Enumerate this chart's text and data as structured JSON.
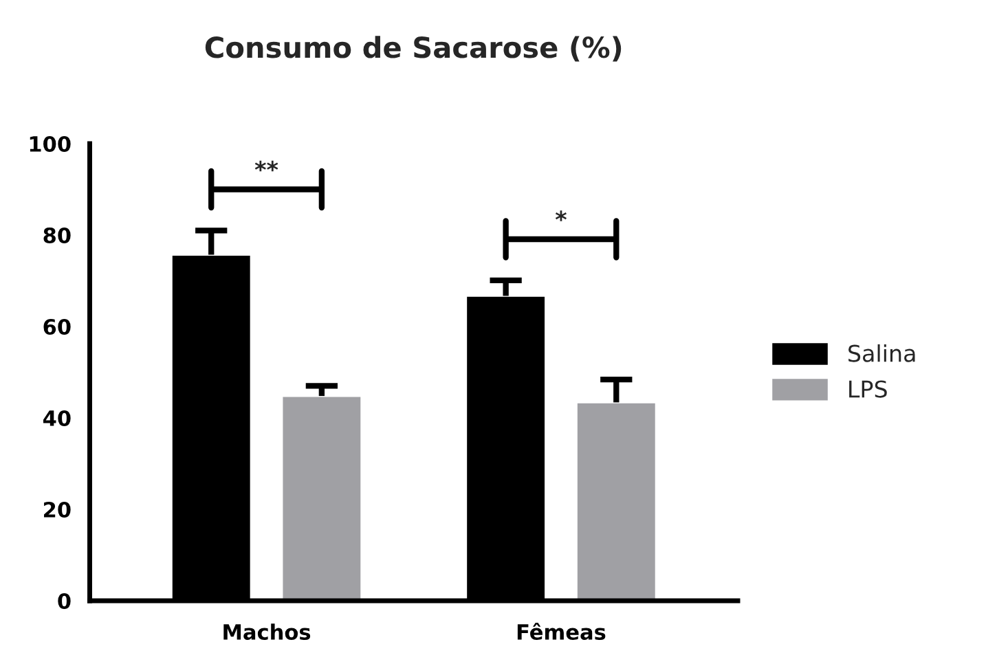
{
  "chart_data": {
    "type": "bar",
    "title": "Consumo de Sacarose (%)",
    "categories": [
      "Machos",
      "Fêmeas"
    ],
    "series": [
      {
        "name": "Salina",
        "color": "#000000",
        "values": [
          75.7,
          66.7
        ],
        "errors": [
          [
            75.7,
            81.0
          ],
          [
            66.7,
            70.1
          ]
        ]
      },
      {
        "name": "LPS",
        "color": "#a0a0a4",
        "values": [
          44.8,
          43.4
        ],
        "errors": [
          [
            44.8,
            47.0
          ],
          [
            43.4,
            48.4
          ]
        ]
      }
    ],
    "ylim": [
      0,
      100
    ],
    "yticks": [
      0,
      20,
      40,
      60,
      80,
      100
    ],
    "grid": false,
    "legend": "right",
    "annotations": [
      "**",
      "*"
    ]
  }
}
